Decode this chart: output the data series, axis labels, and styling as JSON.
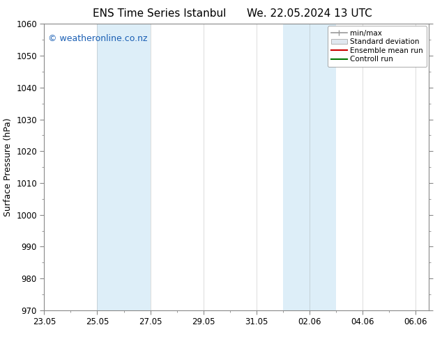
{
  "title_left": "ENS Time Series Istanbul",
  "title_right": "We. 22.05.2024 13 UTC",
  "ylabel": "Surface Pressure (hPa)",
  "ylim": [
    970,
    1060
  ],
  "yticks": [
    970,
    980,
    990,
    1000,
    1010,
    1020,
    1030,
    1040,
    1050,
    1060
  ],
  "xlim": [
    0,
    14.5
  ],
  "xtick_labels": [
    "23.05",
    "25.05",
    "27.05",
    "29.05",
    "31.05",
    "02.06",
    "04.06",
    "06.06"
  ],
  "xtick_positions": [
    0,
    2,
    4,
    6,
    8,
    10,
    12,
    14
  ],
  "shaded_regions": [
    {
      "x_start": 2.0,
      "x_end": 4.0,
      "color": "#ddeef8"
    },
    {
      "x_start": 9.0,
      "x_end": 11.0,
      "color": "#ddeef8"
    }
  ],
  "watermark": "© weatheronline.co.nz",
  "watermark_color": "#1a5fb4",
  "legend_entries": [
    {
      "label": "min/max",
      "color": "#999999",
      "style": "minmax"
    },
    {
      "label": "Standard deviation",
      "color": "#cccccc",
      "style": "box"
    },
    {
      "label": "Ensemble mean run",
      "color": "#cc0000",
      "style": "line"
    },
    {
      "label": "Controll run",
      "color": "#007700",
      "style": "line"
    }
  ],
  "background_color": "#ffffff",
  "spine_color": "#888888",
  "tick_color": "#333333",
  "title_fontsize": 11,
  "label_fontsize": 9,
  "tick_fontsize": 8.5,
  "watermark_fontsize": 9
}
